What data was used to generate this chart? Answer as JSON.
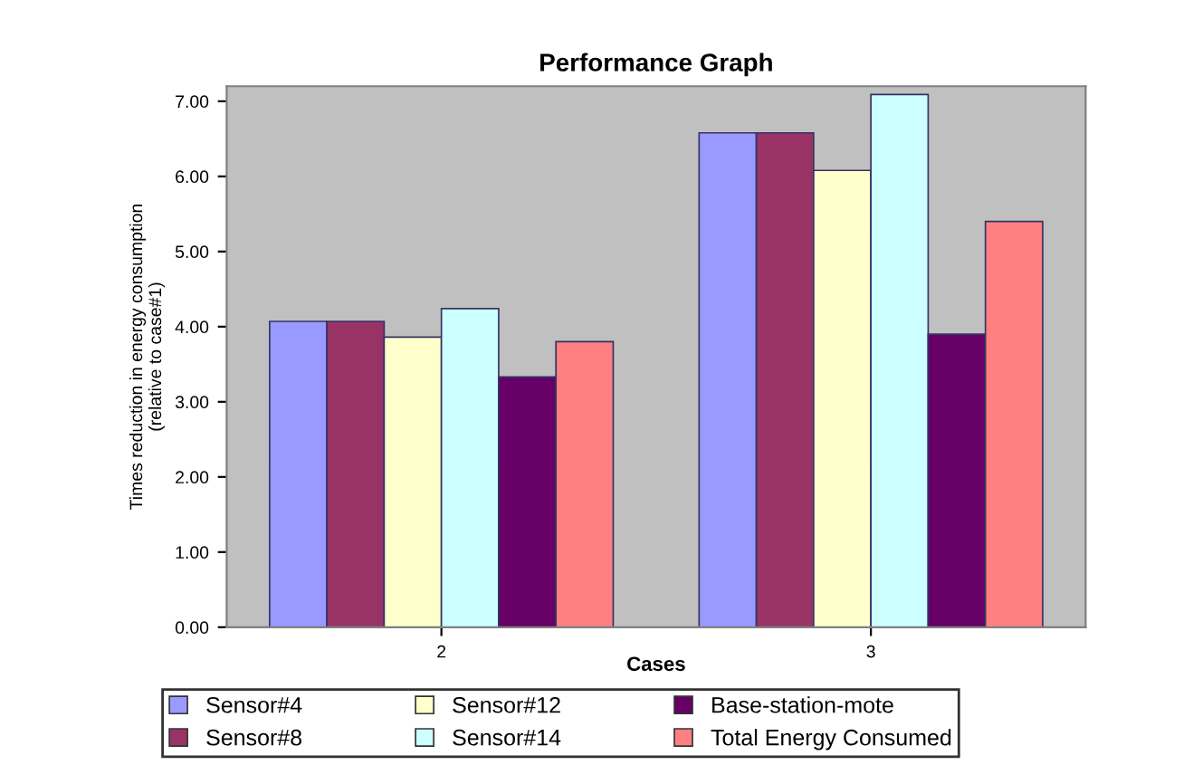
{
  "chart_data": {
    "type": "bar",
    "title": "Performance Graph",
    "xlabel": "Cases",
    "ylabel": "Times reduction in energy consumption\n(relative to case#1)",
    "categories": [
      "2",
      "3"
    ],
    "series": [
      {
        "name": "Sensor#4",
        "color": "#9999ff",
        "values": [
          4.07,
          6.58
        ]
      },
      {
        "name": "Sensor#8",
        "color": "#993366",
        "values": [
          4.07,
          6.58
        ]
      },
      {
        "name": "Sensor#12",
        "color": "#ffffcc",
        "values": [
          3.86,
          6.08
        ]
      },
      {
        "name": "Sensor#14",
        "color": "#ccffff",
        "values": [
          4.24,
          7.09
        ]
      },
      {
        "name": "Base-station-mote",
        "color": "#660066",
        "values": [
          3.33,
          3.9
        ]
      },
      {
        "name": "Total Energy Consumed",
        "color": "#ff8080",
        "values": [
          3.8,
          5.4
        ]
      }
    ],
    "ylim": [
      0,
      7.2
    ],
    "yticks": [
      {
        "value": 0,
        "label": "0.00"
      },
      {
        "value": 1,
        "label": "1.00"
      },
      {
        "value": 2,
        "label": "2.00"
      },
      {
        "value": 3,
        "label": "3.00"
      },
      {
        "value": 4,
        "label": "4.00"
      },
      {
        "value": 5,
        "label": "5.00"
      },
      {
        "value": 6,
        "label": "6.00"
      },
      {
        "value": 7,
        "label": "7.00"
      }
    ],
    "grid": false,
    "legend": "bottom"
  }
}
